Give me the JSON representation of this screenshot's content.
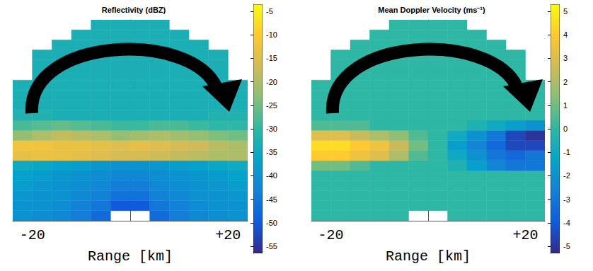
{
  "chart_data": [
    {
      "type": "heatmap",
      "title": "Reflectivity (dBZ)",
      "x_label": "Range [km]",
      "xlim": [
        -24,
        24
      ],
      "xticks": [
        -20,
        {
          "value": 20,
          "label": "+20"
        }
      ],
      "ylim": [
        0,
        10
      ],
      "tick_labels": "x",
      "x_edges": [
        -24,
        -20,
        -16,
        -12,
        -8,
        -4,
        0,
        4,
        8,
        12,
        16,
        20,
        24
      ],
      "y_edges": [
        0,
        0.5,
        1,
        1.5,
        2,
        2.5,
        3,
        3.5,
        4,
        4.5,
        5,
        5.5,
        6,
        6.5,
        7,
        7.5,
        8,
        8.5,
        9,
        9.5,
        10
      ],
      "cells": [
        [
          -40,
          -41,
          -42,
          -44,
          -47,
          null,
          null,
          -47,
          -44,
          -42,
          -41,
          -40
        ],
        [
          -40,
          -40,
          -41,
          -43,
          -45,
          -50,
          -50,
          -45,
          -43,
          -41,
          -40,
          -40
        ],
        [
          -39,
          -40,
          -40,
          -42,
          -43,
          -46,
          -46,
          -43,
          -42,
          -40,
          -40,
          -39
        ],
        [
          -38,
          -39,
          -40,
          -41,
          -42,
          -44,
          -44,
          -42,
          -41,
          -40,
          -39,
          -38
        ],
        [
          -37,
          -38,
          -39,
          -40,
          -41,
          -42,
          -42,
          -41,
          -40,
          -39,
          -38,
          -37
        ],
        [
          -35,
          -36,
          -37,
          -38,
          -39,
          -40,
          -40,
          -39,
          -38,
          -37,
          -36,
          -35
        ],
        [
          -14,
          -13,
          -13,
          -14,
          -15,
          -16,
          -16,
          -17,
          -18,
          -19,
          -20,
          -20
        ],
        [
          -12,
          -12,
          -13,
          -13,
          -14,
          -15,
          -14,
          -15,
          -16,
          -17,
          -19,
          -20
        ],
        [
          -22,
          -20,
          -18,
          -19,
          -20,
          -22,
          -21,
          -20,
          -21,
          -22,
          -24,
          -25
        ],
        [
          -28,
          -27,
          -26,
          -27,
          -28,
          -29,
          -29,
          -28,
          -28,
          -29,
          -30,
          -30
        ],
        [
          -32,
          -32,
          -33,
          -33,
          -33,
          -33,
          -33,
          -33,
          -33,
          -33,
          -32,
          -32
        ],
        [
          -33,
          -33,
          -33,
          -33,
          -33,
          -33,
          -33,
          -33,
          -33,
          -33,
          -33,
          -33
        ],
        [
          -33,
          -33,
          -33,
          -33,
          -33,
          -33,
          -33,
          -33,
          -33,
          -33,
          -33,
          -33
        ],
        [
          -33,
          -33,
          -33,
          -33,
          -33,
          -33,
          -33,
          -33,
          -33,
          -33,
          -33,
          -33
        ],
        [
          null,
          -33,
          -33,
          -33,
          -33,
          -33,
          -33,
          -33,
          -33,
          -33,
          -33,
          null
        ],
        [
          null,
          -33,
          -33,
          -33,
          -33,
          -33,
          -33,
          -33,
          -33,
          -33,
          -33,
          null
        ],
        [
          null,
          -33,
          -33,
          -33,
          -33,
          -33,
          -33,
          -33,
          -33,
          -33,
          -33,
          null
        ],
        [
          null,
          null,
          -33,
          -33,
          -33,
          -33,
          -33,
          -33,
          -33,
          -33,
          null,
          null
        ],
        [
          null,
          null,
          null,
          -33,
          -33,
          -33,
          -33,
          -33,
          -33,
          null,
          null,
          null
        ],
        [
          null,
          null,
          null,
          null,
          -33,
          -33,
          -33,
          -33,
          null,
          null,
          null,
          null
        ]
      ],
      "colorbar_lim": [
        -56.5,
        -3.5
      ],
      "colorbar_ticks": [
        -55,
        -50,
        -45,
        -40,
        -35,
        -30,
        -25,
        -20,
        -15,
        -10,
        -5
      ]
    },
    {
      "type": "heatmap",
      "title": "Mean Doppler Velocity (ms⁻¹)",
      "x_label": "Range [km]",
      "xlim": [
        -24,
        24
      ],
      "xticks": [
        -20,
        {
          "value": 20,
          "label": "+20"
        }
      ],
      "ylim": [
        0,
        10
      ],
      "tick_labels": "x",
      "x_edges": [
        -24,
        -20,
        -16,
        -12,
        -8,
        -4,
        0,
        4,
        8,
        12,
        16,
        20,
        24
      ],
      "y_edges": [
        0,
        0.5,
        1,
        1.5,
        2,
        2.5,
        3,
        3.5,
        4,
        4.5,
        5,
        5.5,
        6,
        6.5,
        7,
        7.5,
        8,
        8.5,
        9,
        9.5,
        10
      ],
      "cells": [
        [
          0,
          0,
          0,
          0,
          0,
          null,
          null,
          0,
          0,
          0,
          0,
          0
        ],
        [
          0,
          0,
          0,
          0,
          0,
          0,
          0,
          0,
          0,
          0,
          0,
          0
        ],
        [
          0,
          0,
          0,
          0,
          0,
          0,
          0,
          0,
          0,
          0,
          0,
          0
        ],
        [
          0,
          0,
          0,
          0,
          0,
          0,
          0,
          0,
          0,
          0,
          0,
          0
        ],
        [
          0,
          0,
          0,
          0,
          0,
          0,
          0,
          0,
          0,
          0,
          0,
          0
        ],
        [
          1,
          1,
          0.5,
          0,
          0,
          0,
          0,
          -0.5,
          -1.5,
          -2.5,
          -3,
          -3
        ],
        [
          4,
          4,
          3.5,
          3,
          2,
          0.5,
          0,
          -1,
          -2,
          -3,
          -3.5,
          -3
        ],
        [
          4.5,
          4.5,
          4,
          3.5,
          2.5,
          1,
          0,
          -1.5,
          -2.5,
          -3.5,
          -4.5,
          -4.5
        ],
        [
          3,
          3,
          2.5,
          2,
          1.5,
          0.5,
          0,
          -1,
          -2,
          -3,
          -4.5,
          -5
        ],
        [
          0.5,
          0.5,
          0.5,
          0,
          0,
          0,
          0,
          0,
          -0.5,
          -1,
          -1.5,
          -2
        ],
        [
          0,
          0,
          0,
          0,
          0,
          0,
          0,
          0,
          0,
          0,
          0,
          0
        ],
        [
          0,
          0,
          0,
          0,
          0,
          0,
          0,
          0,
          0,
          0,
          0,
          0
        ],
        [
          0,
          0,
          0,
          0,
          0,
          0,
          0,
          0,
          0,
          0,
          0,
          0
        ],
        [
          0,
          0,
          0,
          0,
          0,
          0,
          0,
          0,
          0,
          0,
          0,
          0
        ],
        [
          null,
          0,
          0,
          0,
          0,
          0,
          0,
          0,
          0,
          0,
          0,
          null
        ],
        [
          null,
          0,
          0,
          0,
          0,
          0,
          0,
          0,
          0,
          0,
          0,
          null
        ],
        [
          null,
          0,
          0,
          0,
          0,
          0,
          0,
          0,
          0,
          0,
          0,
          null
        ],
        [
          null,
          null,
          0,
          0,
          0,
          0,
          0,
          0,
          0,
          0,
          null,
          null
        ],
        [
          null,
          null,
          null,
          0,
          0,
          0,
          0,
          0,
          0,
          null,
          null,
          null
        ],
        [
          null,
          null,
          null,
          null,
          0,
          0,
          0,
          0,
          null,
          null,
          null,
          null
        ]
      ],
      "colorbar_lim": [
        -5.3,
        5.3
      ],
      "colorbar_ticks": [
        -5,
        -4,
        -3,
        -2,
        -1,
        0,
        1,
        2,
        3,
        4,
        5
      ]
    }
  ]
}
